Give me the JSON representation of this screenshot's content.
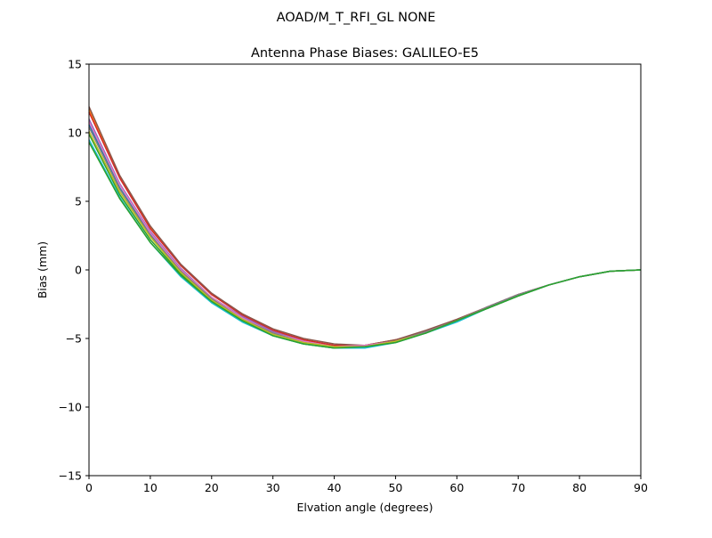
{
  "chart_data": {
    "type": "line",
    "suptitle": "AOAD/M_T_RFI_GL NONE",
    "title": "Antenna Phase Biases: GALILEO-E5",
    "xlabel": "Elvation angle (degrees)",
    "ylabel": "Bias (mm)",
    "xlim": [
      0,
      90
    ],
    "ylim": [
      -15,
      15
    ],
    "xticks": [
      0,
      10,
      20,
      30,
      40,
      50,
      60,
      70,
      80,
      90
    ],
    "yticks": [
      -15,
      -10,
      -5,
      0,
      5,
      10,
      15
    ],
    "ytick_labels": [
      "−15",
      "−10",
      "−5",
      "0",
      "5",
      "10",
      "15"
    ],
    "grid": false,
    "legend": "none",
    "x": [
      0,
      5,
      10,
      15,
      20,
      25,
      30,
      35,
      40,
      45,
      50,
      55,
      60,
      65,
      70,
      75,
      80,
      85,
      90
    ],
    "series": [
      {
        "color": "#1f77b4",
        "values": [
          10.6,
          6.0,
          2.6,
          -0.1,
          -2.1,
          -3.5,
          -4.6,
          -5.3,
          -5.6,
          -5.6,
          -5.2,
          -4.5,
          -3.7,
          -2.7,
          -1.8,
          -1.1,
          -0.5,
          -0.1,
          0.0
        ]
      },
      {
        "color": "#ff7f0e",
        "values": [
          11.7,
          6.8,
          3.1,
          0.3,
          -1.8,
          -3.2,
          -4.4,
          -5.1,
          -5.5,
          -5.5,
          -5.1,
          -4.5,
          -3.7,
          -2.7,
          -1.8,
          -1.1,
          -0.5,
          -0.1,
          0.0
        ]
      },
      {
        "color": "#2ca02c",
        "values": [
          9.9,
          5.5,
          2.2,
          -0.3,
          -2.3,
          -3.7,
          -4.8,
          -5.4,
          -5.7,
          -5.6,
          -5.2,
          -4.6,
          -3.7,
          -2.8,
          -1.9,
          -1.1,
          -0.5,
          -0.1,
          0.0
        ]
      },
      {
        "color": "#d62728",
        "values": [
          11.5,
          6.7,
          3.0,
          0.3,
          -1.8,
          -3.3,
          -4.4,
          -5.1,
          -5.5,
          -5.5,
          -5.1,
          -4.5,
          -3.7,
          -2.7,
          -1.8,
          -1.1,
          -0.5,
          -0.1,
          0.0
        ]
      },
      {
        "color": "#9467bd",
        "values": [
          11.0,
          6.3,
          2.8,
          0.1,
          -2.0,
          -3.4,
          -4.5,
          -5.2,
          -5.6,
          -5.5,
          -5.2,
          -4.5,
          -3.7,
          -2.7,
          -1.8,
          -1.1,
          -0.5,
          -0.1,
          0.0
        ]
      },
      {
        "color": "#8c564b",
        "values": [
          11.9,
          6.9,
          3.2,
          0.4,
          -1.7,
          -3.2,
          -4.3,
          -5.0,
          -5.4,
          -5.5,
          -5.1,
          -4.4,
          -3.6,
          -2.7,
          -1.8,
          -1.1,
          -0.5,
          -0.1,
          0.0
        ]
      },
      {
        "color": "#e377c2",
        "values": [
          10.8,
          6.2,
          2.7,
          0.0,
          -2.0,
          -3.5,
          -4.6,
          -5.2,
          -5.6,
          -5.5,
          -5.2,
          -4.5,
          -3.7,
          -2.7,
          -1.8,
          -1.1,
          -0.5,
          -0.1,
          0.0
        ]
      },
      {
        "color": "#7f7f7f",
        "values": [
          10.4,
          5.9,
          2.5,
          -0.1,
          -2.1,
          -3.6,
          -4.6,
          -5.3,
          -5.6,
          -5.6,
          -5.2,
          -4.5,
          -3.7,
          -2.7,
          -1.8,
          -1.1,
          -0.5,
          -0.1,
          0.0
        ]
      },
      {
        "color": "#bcbd22",
        "values": [
          10.1,
          5.7,
          2.4,
          -0.2,
          -2.2,
          -3.6,
          -4.7,
          -5.3,
          -5.6,
          -5.6,
          -5.2,
          -4.6,
          -3.7,
          -2.8,
          -1.9,
          -1.1,
          -0.5,
          -0.1,
          0.0
        ]
      },
      {
        "color": "#17becf",
        "values": [
          9.5,
          5.3,
          2.0,
          -0.5,
          -2.4,
          -3.8,
          -4.8,
          -5.4,
          -5.7,
          -5.7,
          -5.3,
          -4.6,
          -3.8,
          -2.8,
          -1.9,
          -1.1,
          -0.5,
          -0.1,
          0.0
        ]
      },
      {
        "color": "#2ca02c",
        "values": [
          9.3,
          5.2,
          2.0,
          -0.4,
          -2.3,
          -3.7,
          -4.8,
          -5.4,
          -5.7,
          -5.6,
          -5.3,
          -4.6,
          -3.7,
          -2.8,
          -1.9,
          -1.1,
          -0.5,
          -0.1,
          0.0
        ]
      }
    ]
  }
}
